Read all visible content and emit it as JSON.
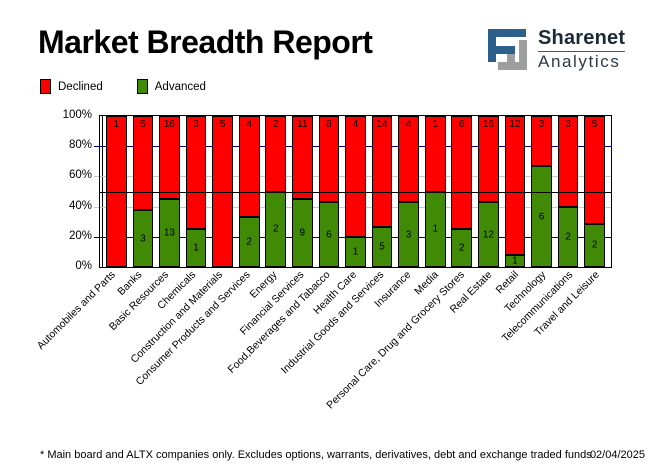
{
  "header": {
    "title": "Market Breadth Report",
    "brand_line1": "Sharenet",
    "brand_line2": "Analytics",
    "brand_colors": {
      "blue": "#2d5f8b",
      "gray": "#9e9e9e"
    }
  },
  "legend": [
    {
      "label": "Declined",
      "color": "#ff0000"
    },
    {
      "label": "Advanced",
      "color": "#418a06"
    }
  ],
  "footer": {
    "note": "* Main board and ALTX companies only. Excludes options, warrants, derivatives, debt and exchange traded funds",
    "date": "02/04/2025"
  },
  "chart_data": {
    "type": "bar",
    "stacked": true,
    "stack_mode": "percent",
    "title": "Market Breadth Report",
    "xlabel": "",
    "ylabel": "",
    "ylim": [
      0,
      100
    ],
    "y_ticks": [
      "100%",
      "80%",
      "60%",
      "40%",
      "20%",
      "0%"
    ],
    "legend_position": "top-left",
    "categories": [
      "Automobiles and Parts",
      "Banks",
      "Basic Resources",
      "Chemicals",
      "Construction and Materials",
      "Consumer Products and Services",
      "Energy",
      "Financial Services",
      "Food,Beverages and Tabacco",
      "Health Care",
      "Industrial Goods and Services",
      "Insurance",
      "Media",
      "Personal Care, Drug and Grocery Stores",
      "Real Estate",
      "Retail",
      "Technology",
      "Telecommunications",
      "Travel and Leisure"
    ],
    "series": [
      {
        "name": "Declined",
        "color": "#ff0000",
        "values": [
          1,
          5,
          16,
          3,
          5,
          4,
          2,
          11,
          8,
          4,
          14,
          4,
          1,
          6,
          16,
          12,
          3,
          3,
          5
        ]
      },
      {
        "name": "Advanced",
        "color": "#418a06",
        "values": [
          0,
          3,
          13,
          1,
          0,
          2,
          2,
          9,
          6,
          1,
          5,
          3,
          1,
          2,
          12,
          1,
          6,
          2,
          2
        ]
      }
    ],
    "grid": [
      {
        "level": 80,
        "color": "#000080",
        "above_bars": false,
        "stub": true
      },
      {
        "level": 60,
        "color": "#c8c8c8",
        "above_bars": false,
        "stub": true
      },
      {
        "level": 50,
        "color": "#000000",
        "above_bars": true,
        "stub": false
      },
      {
        "level": 40,
        "color": "#c8c8c8",
        "above_bars": false,
        "stub": true
      },
      {
        "level": 20,
        "color": "#000080",
        "above_bars": false,
        "stub": true
      }
    ]
  }
}
